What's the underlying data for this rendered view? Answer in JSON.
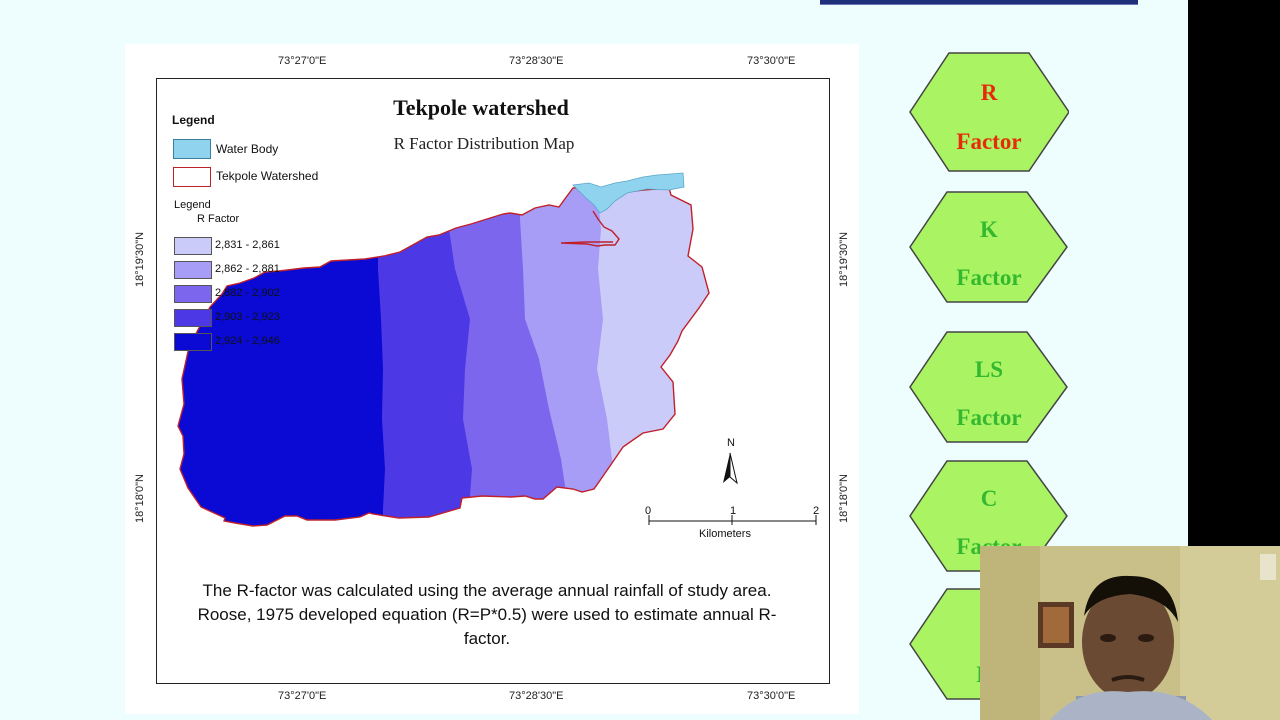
{
  "map": {
    "title": "Tekpole watershed",
    "subtitle": "R Factor Distribution Map",
    "top_ticks": [
      "73°27'0\"E",
      "73°28'30\"E",
      "73°30'0\"E"
    ],
    "bottom_ticks": [
      "73°27'0\"E",
      "73°28'30\"E",
      "73°30'0\"E"
    ],
    "left_ticks": [
      "18°19'30\"N",
      "18°18'0\"N"
    ],
    "right_ticks": [
      "18°19'30\"N",
      "18°18'0\"N"
    ],
    "legend": {
      "heading": "Legend",
      "items": [
        {
          "label": "Water Body",
          "color": "#8fd3ef"
        },
        {
          "label": "Tekpole Watershed",
          "color": "#ffffff",
          "border": "#c0202a"
        }
      ],
      "subheading": "Legend",
      "field_name": "R Factor",
      "classes": [
        {
          "label": "2,831 - 2,861",
          "color": "#cbcbf9"
        },
        {
          "label": "2,862 - 2,881",
          "color": "#a79cf6"
        },
        {
          "label": "2,882 - 2,902",
          "color": "#7c66ee"
        },
        {
          "label": "2,903 - 2,923",
          "color": "#4d38e6"
        },
        {
          "label": "2,924 - 2,946",
          "color": "#0a0ad4"
        }
      ]
    },
    "north_label": "N",
    "scale": {
      "ticks": [
        "0",
        "1",
        "2"
      ],
      "unit": "Kilometers"
    },
    "description": "The R-factor was calculated using the average annual rainfall of study area. Roose, 1975  developed equation (R=P*0.5) were used to estimate annual R-factor."
  },
  "nav": {
    "items": [
      {
        "line1": "R",
        "line2": "Factor",
        "color": "#e52b0c"
      },
      {
        "line1": "K",
        "line2": "Factor",
        "color": "#33b82f"
      },
      {
        "line1": "LS",
        "line2": "Factor",
        "color": "#33b82f"
      },
      {
        "line1": "C",
        "line2": "Factor",
        "color": "#33b82f"
      },
      {
        "line1": "",
        "line2": "Fa",
        "color": "#33b82f"
      }
    ],
    "fill": "#aaf463",
    "stroke": "#444444"
  }
}
